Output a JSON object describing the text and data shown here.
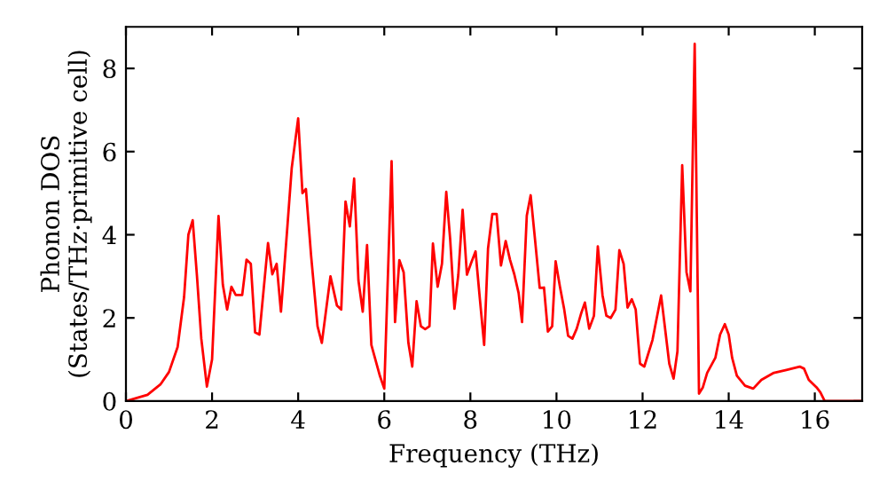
{
  "chart_data": {
    "type": "line",
    "xlabel": "Frequency (THz)",
    "ylabel": "Phonon DOS\n(States/THz·primitive cell)",
    "xlim": [
      0,
      17.1
    ],
    "ylim": [
      0,
      9
    ],
    "xticks": [
      0,
      2,
      4,
      6,
      8,
      10,
      12,
      14,
      16
    ],
    "yticks": [
      0,
      2,
      4,
      6,
      8
    ],
    "grid": false,
    "legend": false,
    "marker": "none",
    "line_style": "solid",
    "series": [
      {
        "color": "#ff0000",
        "x": [
          0,
          0.5,
          0.8,
          1.0,
          1.2,
          1.35,
          1.45,
          1.55,
          1.65,
          1.75,
          1.88,
          2.0,
          2.15,
          2.25,
          2.35,
          2.45,
          2.55,
          2.7,
          2.8,
          2.9,
          3.0,
          3.1,
          3.3,
          3.4,
          3.5,
          3.6,
          3.75,
          3.85,
          4.0,
          4.1,
          4.18,
          4.3,
          4.45,
          4.55,
          4.75,
          4.9,
          5.0,
          5.1,
          5.2,
          5.3,
          5.4,
          5.5,
          5.6,
          5.7,
          5.9,
          6.0,
          6.17,
          6.25,
          6.35,
          6.45,
          6.56,
          6.65,
          6.75,
          6.85,
          6.95,
          7.05,
          7.13,
          7.24,
          7.34,
          7.44,
          7.53,
          7.63,
          7.72,
          7.82,
          7.92,
          8.01,
          8.12,
          8.22,
          8.32,
          8.41,
          8.51,
          8.61,
          8.71,
          8.82,
          8.92,
          9.02,
          9.12,
          9.2,
          9.31,
          9.4,
          9.5,
          9.61,
          9.71,
          9.8,
          9.9,
          9.98,
          10.08,
          10.18,
          10.27,
          10.37,
          10.47,
          10.57,
          10.66,
          10.76,
          10.87,
          10.96,
          11.07,
          11.16,
          11.26,
          11.37,
          11.46,
          11.56,
          11.65,
          11.75,
          11.84,
          11.94,
          12.04,
          12.23,
          12.43,
          12.62,
          12.72,
          12.81,
          12.92,
          13.02,
          13.11,
          13.21,
          13.31,
          13.4,
          13.5,
          13.69,
          13.8,
          13.91,
          14.0,
          14.08,
          14.19,
          14.38,
          14.57,
          14.76,
          15.05,
          15.34,
          15.65,
          15.75,
          15.86,
          16.04,
          16.13,
          16.23,
          17.05
        ],
        "values": [
          0,
          0.15,
          0.4,
          0.7,
          1.3,
          2.5,
          4.0,
          4.35,
          3.0,
          1.5,
          0.35,
          1.0,
          4.45,
          2.8,
          2.2,
          2.75,
          2.55,
          2.55,
          3.4,
          3.3,
          1.65,
          1.6,
          3.8,
          3.05,
          3.3,
          2.15,
          4.2,
          5.6,
          6.8,
          5.0,
          5.1,
          3.5,
          1.8,
          1.4,
          3.0,
          2.3,
          2.2,
          4.8,
          4.2,
          5.35,
          2.9,
          2.15,
          3.75,
          1.35,
          0.6,
          0.3,
          5.77,
          1.9,
          3.39,
          3.1,
          1.4,
          0.83,
          2.4,
          1.8,
          1.73,
          1.8,
          3.79,
          2.75,
          3.3,
          5.03,
          3.9,
          2.22,
          3.04,
          4.6,
          3.04,
          3.3,
          3.6,
          2.46,
          1.35,
          3.67,
          4.5,
          4.5,
          3.26,
          3.85,
          3.4,
          3.05,
          2.6,
          1.9,
          4.46,
          4.95,
          3.9,
          2.72,
          2.73,
          1.67,
          1.8,
          3.36,
          2.75,
          2.2,
          1.57,
          1.5,
          1.74,
          2.1,
          2.37,
          1.74,
          2.05,
          3.72,
          2.54,
          2.05,
          2.0,
          2.2,
          3.63,
          3.3,
          2.25,
          2.45,
          2.2,
          0.9,
          0.83,
          1.47,
          2.54,
          0.9,
          0.54,
          1.2,
          5.67,
          3.1,
          2.64,
          8.59,
          0.18,
          0.33,
          0.68,
          1.04,
          1.6,
          1.85,
          1.6,
          1.04,
          0.61,
          0.37,
          0.3,
          0.51,
          0.68,
          0.75,
          0.83,
          0.78,
          0.51,
          0.33,
          0.21,
          0,
          0
        ]
      }
    ]
  }
}
